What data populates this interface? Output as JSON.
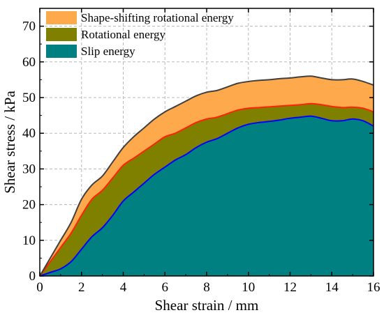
{
  "chart_data": {
    "type": "area",
    "xlabel": "Shear strain / mm",
    "ylabel": "Shear stress / kPa",
    "xlim": [
      0,
      16
    ],
    "ylim": [
      0,
      75
    ],
    "xticks": [
      0,
      2,
      4,
      6,
      8,
      10,
      12,
      14,
      16
    ],
    "yticks": [
      0,
      10,
      20,
      30,
      40,
      50,
      60,
      70
    ],
    "grid": true,
    "legend_position": "top-left",
    "x": [
      0,
      0.5,
      1,
      1.5,
      2,
      2.5,
      3,
      3.5,
      4,
      4.5,
      5,
      5.5,
      6,
      6.5,
      7,
      7.5,
      8,
      8.5,
      9,
      9.5,
      10,
      10.5,
      11,
      11.5,
      12,
      12.5,
      13,
      13.5,
      14,
      14.5,
      15,
      15.5,
      16
    ],
    "series": [
      {
        "name": "Shape-shifting rotational energy",
        "color": "#FFA94D",
        "line_color": "#404040",
        "values": [
          0,
          5,
          10,
          15,
          21.5,
          25.5,
          28,
          32,
          36,
          39,
          41.5,
          44,
          46,
          47.5,
          49,
          50.5,
          51.5,
          52,
          53,
          54,
          54.5,
          54.8,
          55,
          55.3,
          55.5,
          55.8,
          56,
          55.5,
          55,
          55,
          55.2,
          54.5,
          53.5
        ]
      },
      {
        "name": "Rotational energy",
        "color": "#808000",
        "line_color": "#FF2200",
        "values": [
          0,
          4,
          8,
          12,
          17,
          21.5,
          24,
          27.5,
          31,
          33,
          35,
          37,
          39,
          40,
          41.5,
          43,
          44,
          44.5,
          45.5,
          46.5,
          47,
          47.2,
          47.4,
          47.6,
          47.8,
          48,
          48.3,
          48,
          47.5,
          47.2,
          47.3,
          47,
          46
        ]
      },
      {
        "name": "Slip energy",
        "color": "#008080",
        "line_color": "#0000FF",
        "values": [
          0,
          1,
          2,
          4,
          7.5,
          11,
          13.5,
          17,
          21,
          23.5,
          26,
          28.5,
          30.5,
          32.5,
          34,
          36,
          37.5,
          38.5,
          40,
          41.5,
          42.5,
          43,
          43.3,
          43.7,
          44.2,
          44.5,
          44.8,
          44.2,
          43.5,
          43.5,
          44,
          43.5,
          42
        ]
      }
    ]
  }
}
